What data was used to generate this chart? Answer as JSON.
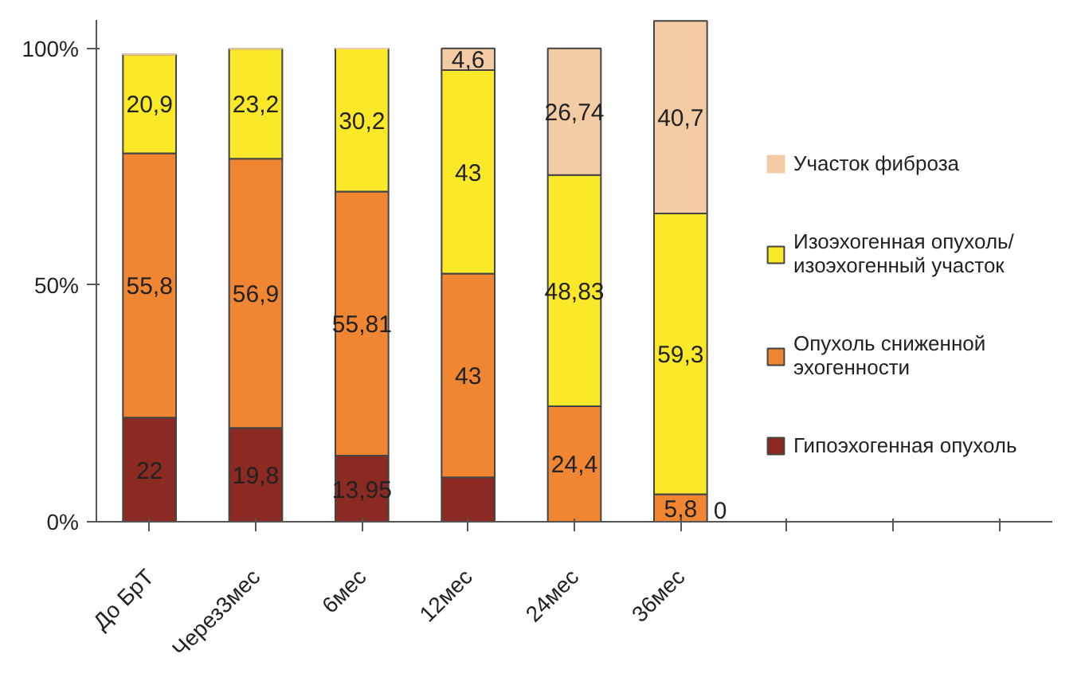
{
  "chart_data": {
    "type": "bar",
    "stacked": true,
    "categories": [
      "До БрТ",
      "Через3мес",
      "6мес",
      "12мес",
      "24мес",
      "36мес",
      null,
      null,
      null
    ],
    "series": [
      {
        "name": "Гипоэхогенная опухоль",
        "color": "#8b2a23",
        "values": [
          22,
          19.8,
          13.95,
          9.4,
          0,
          0,
          0,
          0,
          0
        ],
        "value_labels": [
          "22",
          "19,8",
          "13,95",
          null,
          null,
          "0",
          null,
          null,
          null
        ]
      },
      {
        "name": "Опухоль сниженной эхогенности",
        "color": "#f08532",
        "values": [
          55.8,
          56.9,
          55.81,
          43,
          24.4,
          5.8,
          0,
          0,
          0
        ],
        "value_labels": [
          "55,8",
          "56,9",
          "55,81",
          "43",
          "24,4",
          "5,8",
          null,
          null,
          null
        ]
      },
      {
        "name": "Изоэхогенная опухоль/ изоэхогенный участок",
        "color": "#fbe829",
        "values": [
          20.9,
          23.2,
          30.2,
          43,
          48.83,
          59.3,
          0,
          0,
          0
        ],
        "value_labels": [
          "20,9",
          "23,2",
          "30,2",
          "43",
          "48,83",
          "59,3",
          null,
          null,
          null
        ]
      },
      {
        "name": "Участок фиброза",
        "color": "#f3cba4",
        "values": [
          0,
          0,
          0,
          4.6,
          26.74,
          40.7,
          0,
          0,
          0
        ],
        "value_labels": [
          null,
          null,
          null,
          "4,6",
          "26,74",
          "40,7",
          null,
          null,
          null
        ]
      }
    ],
    "ylim": [
      0,
      106
    ],
    "yticks": [
      {
        "value": 0,
        "label": "0%"
      },
      {
        "value": 50,
        "label": "50%"
      },
      {
        "value": 100,
        "label": "100%"
      }
    ],
    "grid": false,
    "legend": "right"
  }
}
